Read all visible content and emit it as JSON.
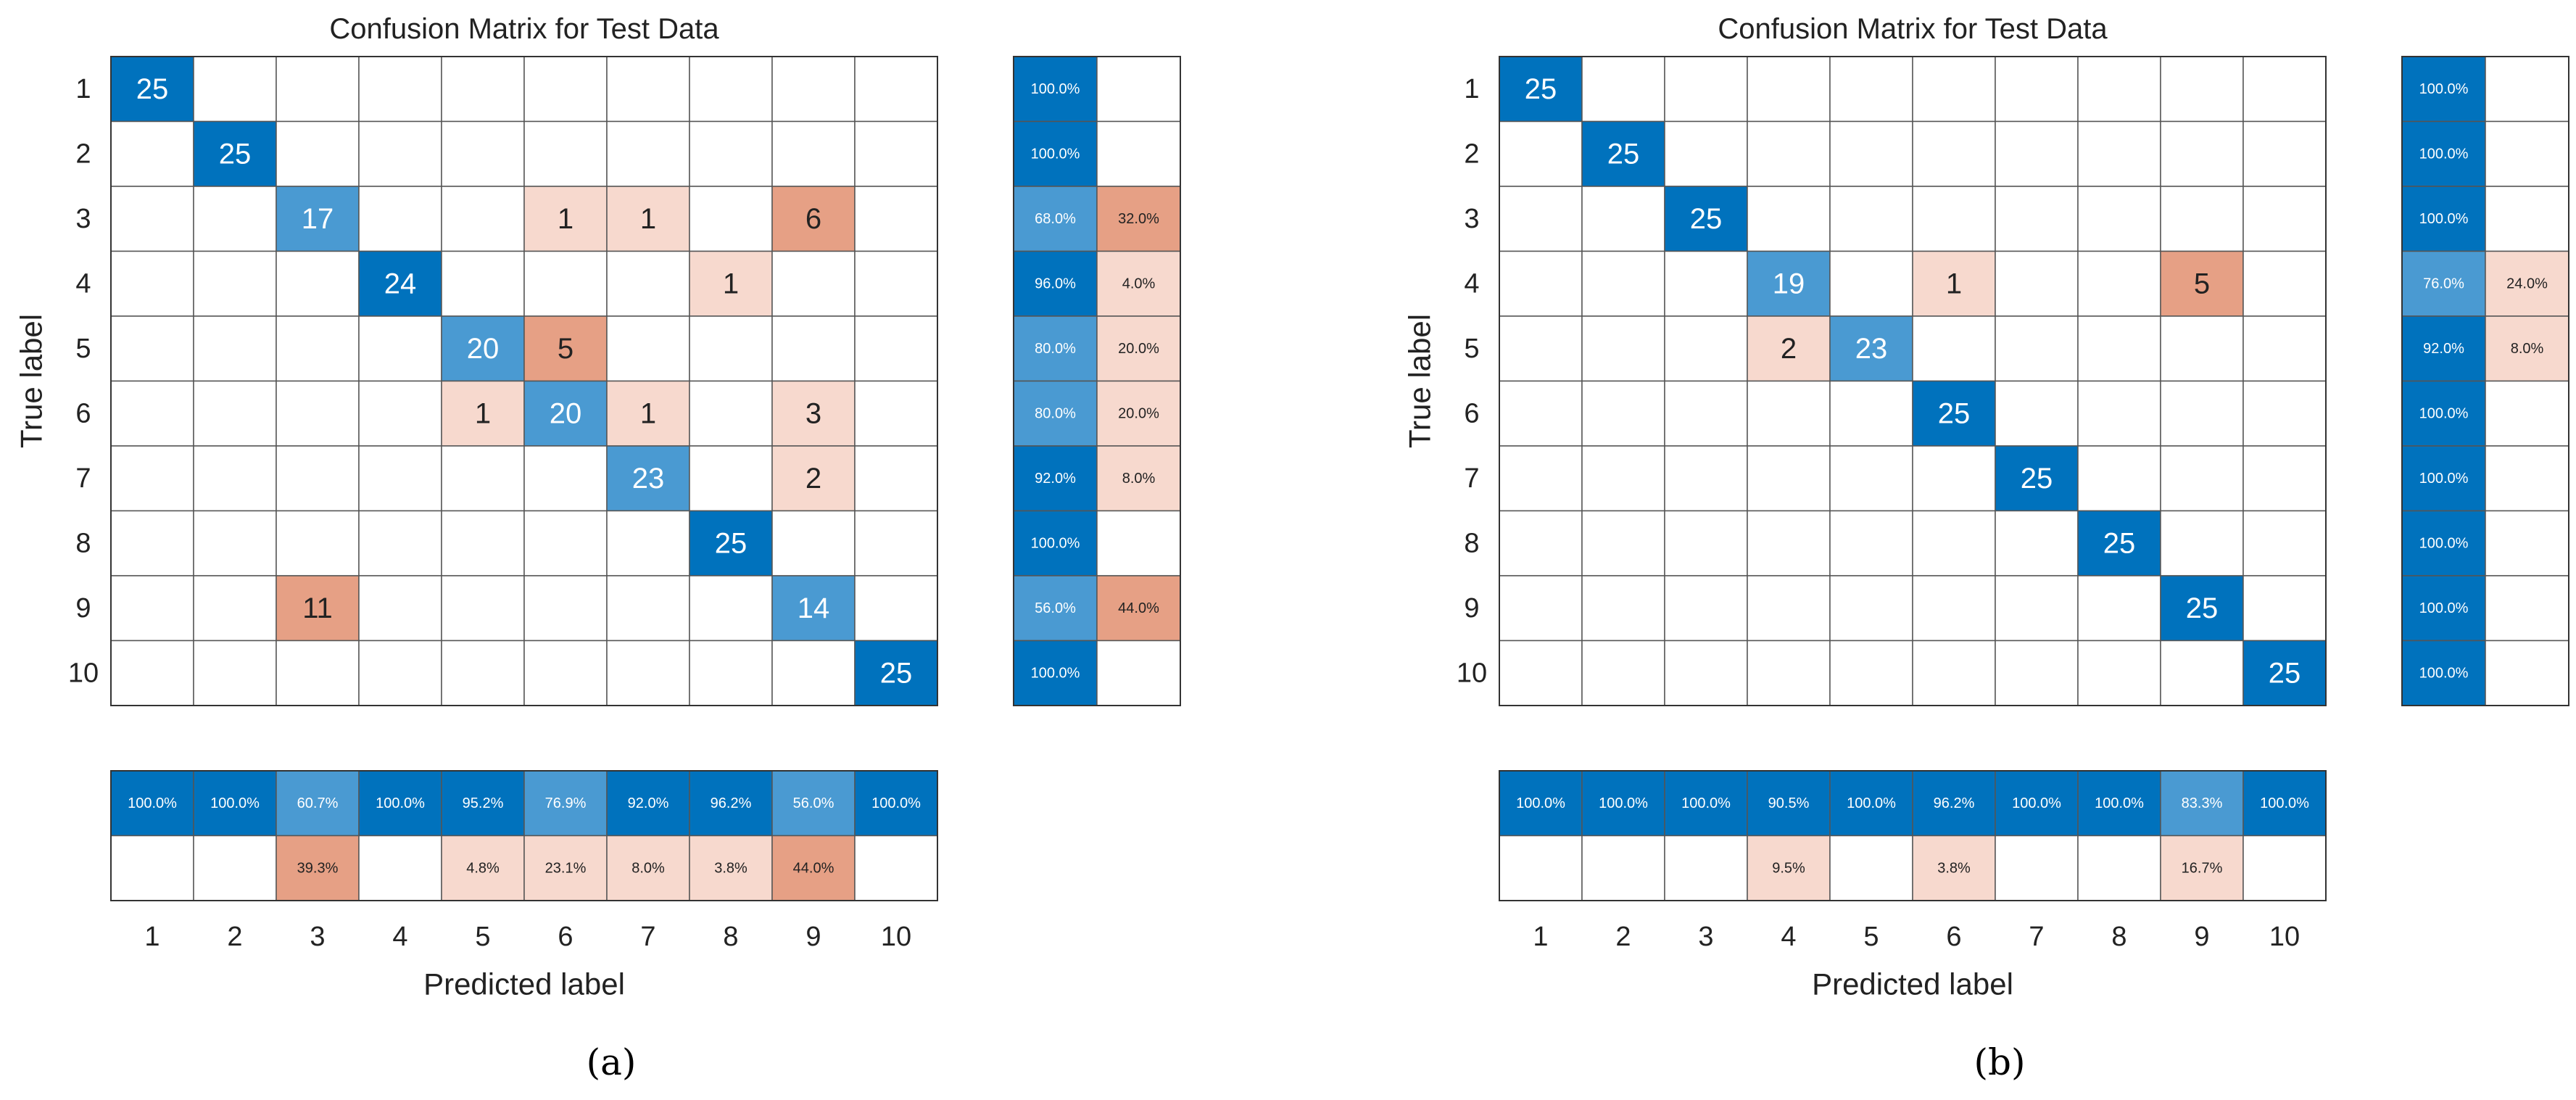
{
  "colors": {
    "diag_dark": "#0072BD",
    "diag_light": "#4A9AD2",
    "off_dark": "#E6A085",
    "off_light": "#F7D9CE",
    "grid": "#555555",
    "text_dark": "#222222",
    "text_light": "#FFFFFF"
  },
  "chart_data": [
    {
      "type": "heatmap",
      "panel_label": "(a)",
      "title": "Confusion Matrix for Test Data",
      "xlabel": "Predicted label",
      "ylabel": "True label",
      "labels": [
        "1",
        "2",
        "3",
        "4",
        "5",
        "6",
        "7",
        "8",
        "9",
        "10"
      ],
      "matrix": [
        [
          25,
          0,
          0,
          0,
          0,
          0,
          0,
          0,
          0,
          0
        ],
        [
          0,
          25,
          0,
          0,
          0,
          0,
          0,
          0,
          0,
          0
        ],
        [
          0,
          0,
          17,
          0,
          0,
          1,
          1,
          0,
          6,
          0
        ],
        [
          0,
          0,
          0,
          24,
          0,
          0,
          0,
          1,
          0,
          0
        ],
        [
          0,
          0,
          0,
          0,
          20,
          5,
          0,
          0,
          0,
          0
        ],
        [
          0,
          0,
          0,
          0,
          1,
          20,
          1,
          0,
          3,
          0
        ],
        [
          0,
          0,
          0,
          0,
          0,
          0,
          23,
          0,
          2,
          0
        ],
        [
          0,
          0,
          0,
          0,
          0,
          0,
          0,
          25,
          0,
          0
        ],
        [
          0,
          0,
          11,
          0,
          0,
          0,
          0,
          0,
          14,
          0
        ],
        [
          0,
          0,
          0,
          0,
          0,
          0,
          0,
          0,
          0,
          25
        ]
      ],
      "row_summary": [
        [
          "100.0%",
          ""
        ],
        [
          "100.0%",
          ""
        ],
        [
          "68.0%",
          "32.0%"
        ],
        [
          "96.0%",
          "4.0%"
        ],
        [
          "80.0%",
          "20.0%"
        ],
        [
          "80.0%",
          "20.0%"
        ],
        [
          "92.0%",
          "8.0%"
        ],
        [
          "100.0%",
          ""
        ],
        [
          "56.0%",
          "44.0%"
        ],
        [
          "100.0%",
          ""
        ]
      ],
      "column_summary": {
        "correct": [
          "100.0%",
          "100.0%",
          "60.7%",
          "100.0%",
          "95.2%",
          "76.9%",
          "92.0%",
          "96.2%",
          "56.0%",
          "100.0%"
        ],
        "incorrect": [
          "",
          "",
          "39.3%",
          "",
          "4.8%",
          "23.1%",
          "8.0%",
          "3.8%",
          "44.0%",
          ""
        ]
      }
    },
    {
      "type": "heatmap",
      "panel_label": "(b)",
      "title": "Confusion Matrix for Test Data",
      "xlabel": "Predicted label",
      "ylabel": "True label",
      "labels": [
        "1",
        "2",
        "3",
        "4",
        "5",
        "6",
        "7",
        "8",
        "9",
        "10"
      ],
      "matrix": [
        [
          25,
          0,
          0,
          0,
          0,
          0,
          0,
          0,
          0,
          0
        ],
        [
          0,
          25,
          0,
          0,
          0,
          0,
          0,
          0,
          0,
          0
        ],
        [
          0,
          0,
          25,
          0,
          0,
          0,
          0,
          0,
          0,
          0
        ],
        [
          0,
          0,
          0,
          19,
          0,
          1,
          0,
          0,
          5,
          0
        ],
        [
          0,
          0,
          0,
          2,
          23,
          0,
          0,
          0,
          0,
          0
        ],
        [
          0,
          0,
          0,
          0,
          0,
          25,
          0,
          0,
          0,
          0
        ],
        [
          0,
          0,
          0,
          0,
          0,
          0,
          25,
          0,
          0,
          0
        ],
        [
          0,
          0,
          0,
          0,
          0,
          0,
          0,
          25,
          0,
          0
        ],
        [
          0,
          0,
          0,
          0,
          0,
          0,
          0,
          0,
          25,
          0
        ],
        [
          0,
          0,
          0,
          0,
          0,
          0,
          0,
          0,
          0,
          25
        ]
      ],
      "row_summary": [
        [
          "100.0%",
          ""
        ],
        [
          "100.0%",
          ""
        ],
        [
          "100.0%",
          ""
        ],
        [
          "76.0%",
          "24.0%"
        ],
        [
          "92.0%",
          "8.0%"
        ],
        [
          "100.0%",
          ""
        ],
        [
          "100.0%",
          ""
        ],
        [
          "100.0%",
          ""
        ],
        [
          "100.0%",
          ""
        ],
        [
          "100.0%",
          ""
        ]
      ],
      "column_summary": {
        "correct": [
          "100.0%",
          "100.0%",
          "100.0%",
          "90.5%",
          "100.0%",
          "96.2%",
          "100.0%",
          "100.0%",
          "83.3%",
          "100.0%"
        ],
        "incorrect": [
          "",
          "",
          "",
          "9.5%",
          "",
          "3.8%",
          "",
          "",
          "16.7%",
          ""
        ]
      }
    }
  ]
}
